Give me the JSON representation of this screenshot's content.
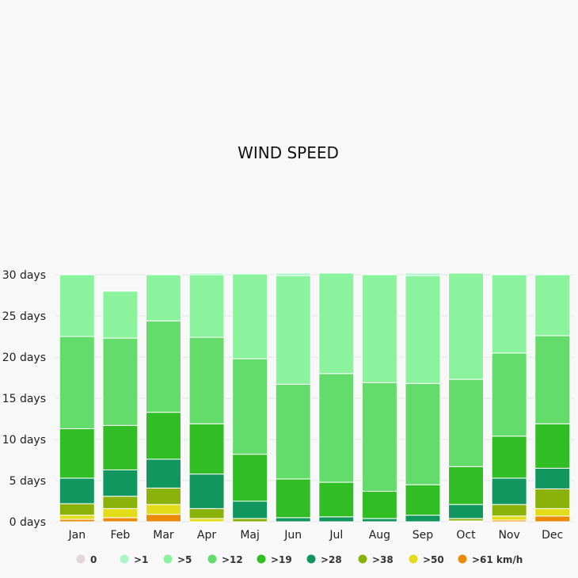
{
  "chart_data": {
    "type": "bar",
    "stacked": true,
    "title": "WIND SPEED",
    "categories": [
      "Jan",
      "Feb",
      "Mar",
      "Apr",
      "Maj",
      "Jun",
      "Jul",
      "Aug",
      "Sep",
      "Oct",
      "Nov",
      "Dec"
    ],
    "ylim": [
      0,
      30
    ],
    "y_ticks": [
      0,
      5,
      10,
      15,
      20,
      25,
      30
    ],
    "y_tick_suffix": " days",
    "grid": true,
    "legend_position": "bottom",
    "series": [
      {
        "name": "0",
        "color": "#e2d6da",
        "values": [
          0,
          0,
          0,
          0,
          0,
          0,
          0,
          0,
          0,
          0,
          0,
          0
        ]
      },
      {
        "name": ">1",
        "color": "#a9f5c8",
        "values": [
          0,
          0,
          0,
          0.2,
          0,
          0.3,
          0,
          0,
          0.3,
          0,
          0,
          0
        ]
      },
      {
        "name": ">5",
        "color": "#8bf39e",
        "values": [
          7.5,
          5.7,
          5.6,
          7.6,
          10.3,
          13.2,
          12.2,
          13.1,
          13.1,
          12.9,
          9.5,
          7.4
        ]
      },
      {
        "name": ">12",
        "color": "#63dc6b",
        "values": [
          11.2,
          10.6,
          11.1,
          10.5,
          11.6,
          11.5,
          13.2,
          13.2,
          12.3,
          10.6,
          10.1,
          10.7
        ]
      },
      {
        "name": ">19",
        "color": "#31be24",
        "values": [
          6,
          5.4,
          5.7,
          6.1,
          5.7,
          4.7,
          4.2,
          3.3,
          3.7,
          4.6,
          5.1,
          5.4
        ]
      },
      {
        "name": ">28",
        "color": "#10965e",
        "values": [
          3.1,
          3.2,
          3.5,
          4.2,
          2.1,
          0.5,
          0.6,
          0.4,
          0.8,
          1.7,
          3.2,
          2.5
        ]
      },
      {
        "name": ">38",
        "color": "#8ab20b",
        "values": [
          1.4,
          1.5,
          2,
          1.2,
          0.4,
          0,
          0,
          0,
          0,
          0.3,
          1.4,
          2.4
        ]
      },
      {
        "name": ">50",
        "color": "#e2dc19",
        "values": [
          0.5,
          1.1,
          1.2,
          0.4,
          0,
          0,
          0,
          0,
          0,
          0.1,
          0.5,
          0.9
        ]
      },
      {
        "name": ">61 km/h",
        "color": "#eb8b09",
        "values": [
          0.3,
          0.5,
          0.9,
          0,
          0,
          0,
          0,
          0,
          0,
          0,
          0.2,
          0.7
        ]
      }
    ]
  }
}
